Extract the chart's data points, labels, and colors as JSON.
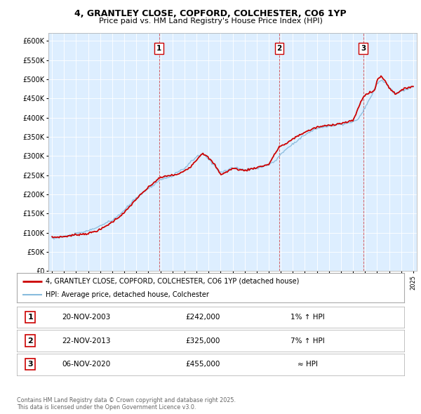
{
  "title1": "4, GRANTLEY CLOSE, COPFORD, COLCHESTER, CO6 1YP",
  "title2": "Price paid vs. HM Land Registry's House Price Index (HPI)",
  "ylabel_ticks": [
    "£0",
    "£50K",
    "£100K",
    "£150K",
    "£200K",
    "£250K",
    "£300K",
    "£350K",
    "£400K",
    "£450K",
    "£500K",
    "£550K",
    "£600K"
  ],
  "ytick_vals": [
    0,
    50000,
    100000,
    150000,
    200000,
    250000,
    300000,
    350000,
    400000,
    450000,
    500000,
    550000,
    600000
  ],
  "bg_color": "#ddeeff",
  "red_line_color": "#cc0000",
  "blue_line_color": "#88bbdd",
  "sale1_year": 2003.89,
  "sale2_year": 2013.89,
  "sale3_year": 2020.85,
  "legend_label1": "4, GRANTLEY CLOSE, COPFORD, COLCHESTER, CO6 1YP (detached house)",
  "legend_label2": "HPI: Average price, detached house, Colchester",
  "footer1": "Contains HM Land Registry data © Crown copyright and database right 2025.",
  "footer2": "This data is licensed under the Open Government Licence v3.0.",
  "table": [
    {
      "num": "1",
      "date": "20-NOV-2003",
      "price": "£242,000",
      "pct": "1% ↑ HPI"
    },
    {
      "num": "2",
      "date": "22-NOV-2013",
      "price": "£325,000",
      "pct": "7% ↑ HPI"
    },
    {
      "num": "3",
      "date": "06-NOV-2020",
      "price": "£455,000",
      "pct": "≈ HPI"
    }
  ]
}
